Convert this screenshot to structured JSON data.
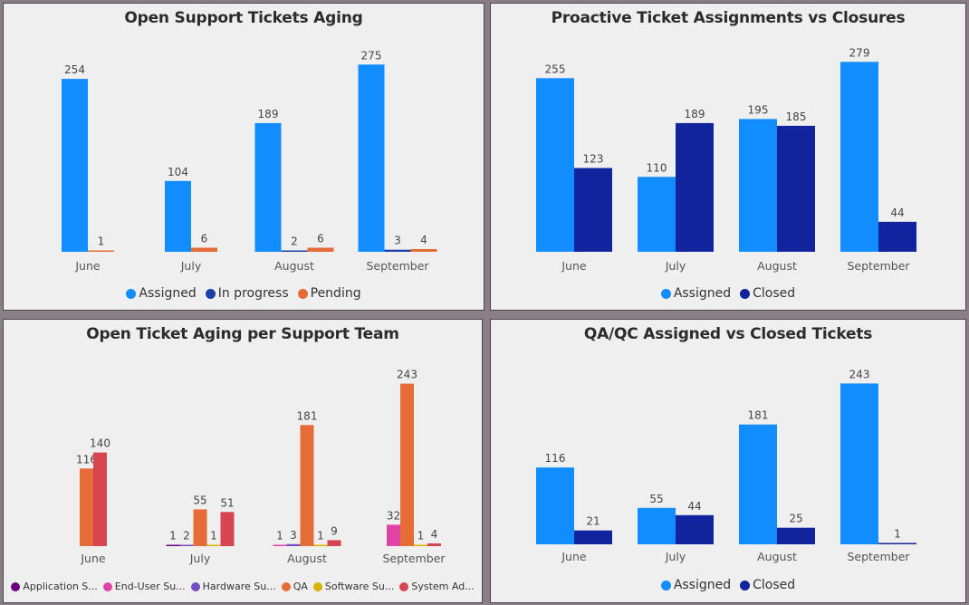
{
  "chart_data": [
    {
      "type": "bar",
      "title": "Open Support Tickets Aging",
      "categories": [
        "June",
        "July",
        "August",
        "September"
      ],
      "series": [
        {
          "name": "Assigned",
          "color": "#118dff",
          "values": [
            254,
            104,
            189,
            275
          ]
        },
        {
          "name": "In progress",
          "color": "#1c3fa8",
          "values": [
            null,
            null,
            2,
            3
          ]
        },
        {
          "name": "Pending",
          "color": "#e66c37",
          "values": [
            1,
            6,
            6,
            4
          ]
        }
      ],
      "ylim": [
        0,
        290
      ],
      "grid": false,
      "legend_position": "bottom"
    },
    {
      "type": "bar",
      "title": "Proactive Ticket Assignments vs Closures",
      "categories": [
        "June",
        "July",
        "August",
        "September"
      ],
      "series": [
        {
          "name": "Assigned",
          "color": "#118dff",
          "values": [
            255,
            110,
            195,
            279
          ]
        },
        {
          "name": "Closed",
          "color": "#12239e",
          "values": [
            123,
            189,
            185,
            44
          ]
        }
      ],
      "ylim": [
        0,
        290
      ],
      "grid": false,
      "legend_position": "bottom"
    },
    {
      "type": "bar",
      "title": "Open Ticket Aging per Support Team",
      "categories": [
        "June",
        "July",
        "August",
        "September"
      ],
      "series": [
        {
          "name": "Application S...",
          "color": "#6b007b",
          "values": [
            null,
            1,
            null,
            null
          ]
        },
        {
          "name": "End-User Su...",
          "color": "#e044a7",
          "values": [
            null,
            null,
            1,
            32
          ]
        },
        {
          "name": "Hardware Su...",
          "color": "#744ec2",
          "values": [
            null,
            2,
            3,
            null
          ]
        },
        {
          "name": "QA",
          "color": "#e66c37",
          "values": [
            116,
            55,
            181,
            243
          ]
        },
        {
          "name": "Software Su...",
          "color": "#d9b300",
          "values": [
            null,
            1,
            1,
            1
          ]
        },
        {
          "name": "System Ad...",
          "color": "#d64550",
          "values": [
            140,
            51,
            9,
            4
          ]
        }
      ],
      "ylim": [
        0,
        260
      ],
      "grid": false,
      "legend_position": "bottom"
    },
    {
      "type": "bar",
      "title": "QA/QC Assigned vs Closed Tickets",
      "categories": [
        "June",
        "July",
        "August",
        "September"
      ],
      "series": [
        {
          "name": "Assigned",
          "color": "#118dff",
          "values": [
            116,
            55,
            181,
            243
          ]
        },
        {
          "name": "Closed",
          "color": "#12239e",
          "values": [
            21,
            44,
            25,
            1
          ]
        }
      ],
      "ylim": [
        0,
        260
      ],
      "grid": false,
      "legend_position": "bottom"
    }
  ]
}
